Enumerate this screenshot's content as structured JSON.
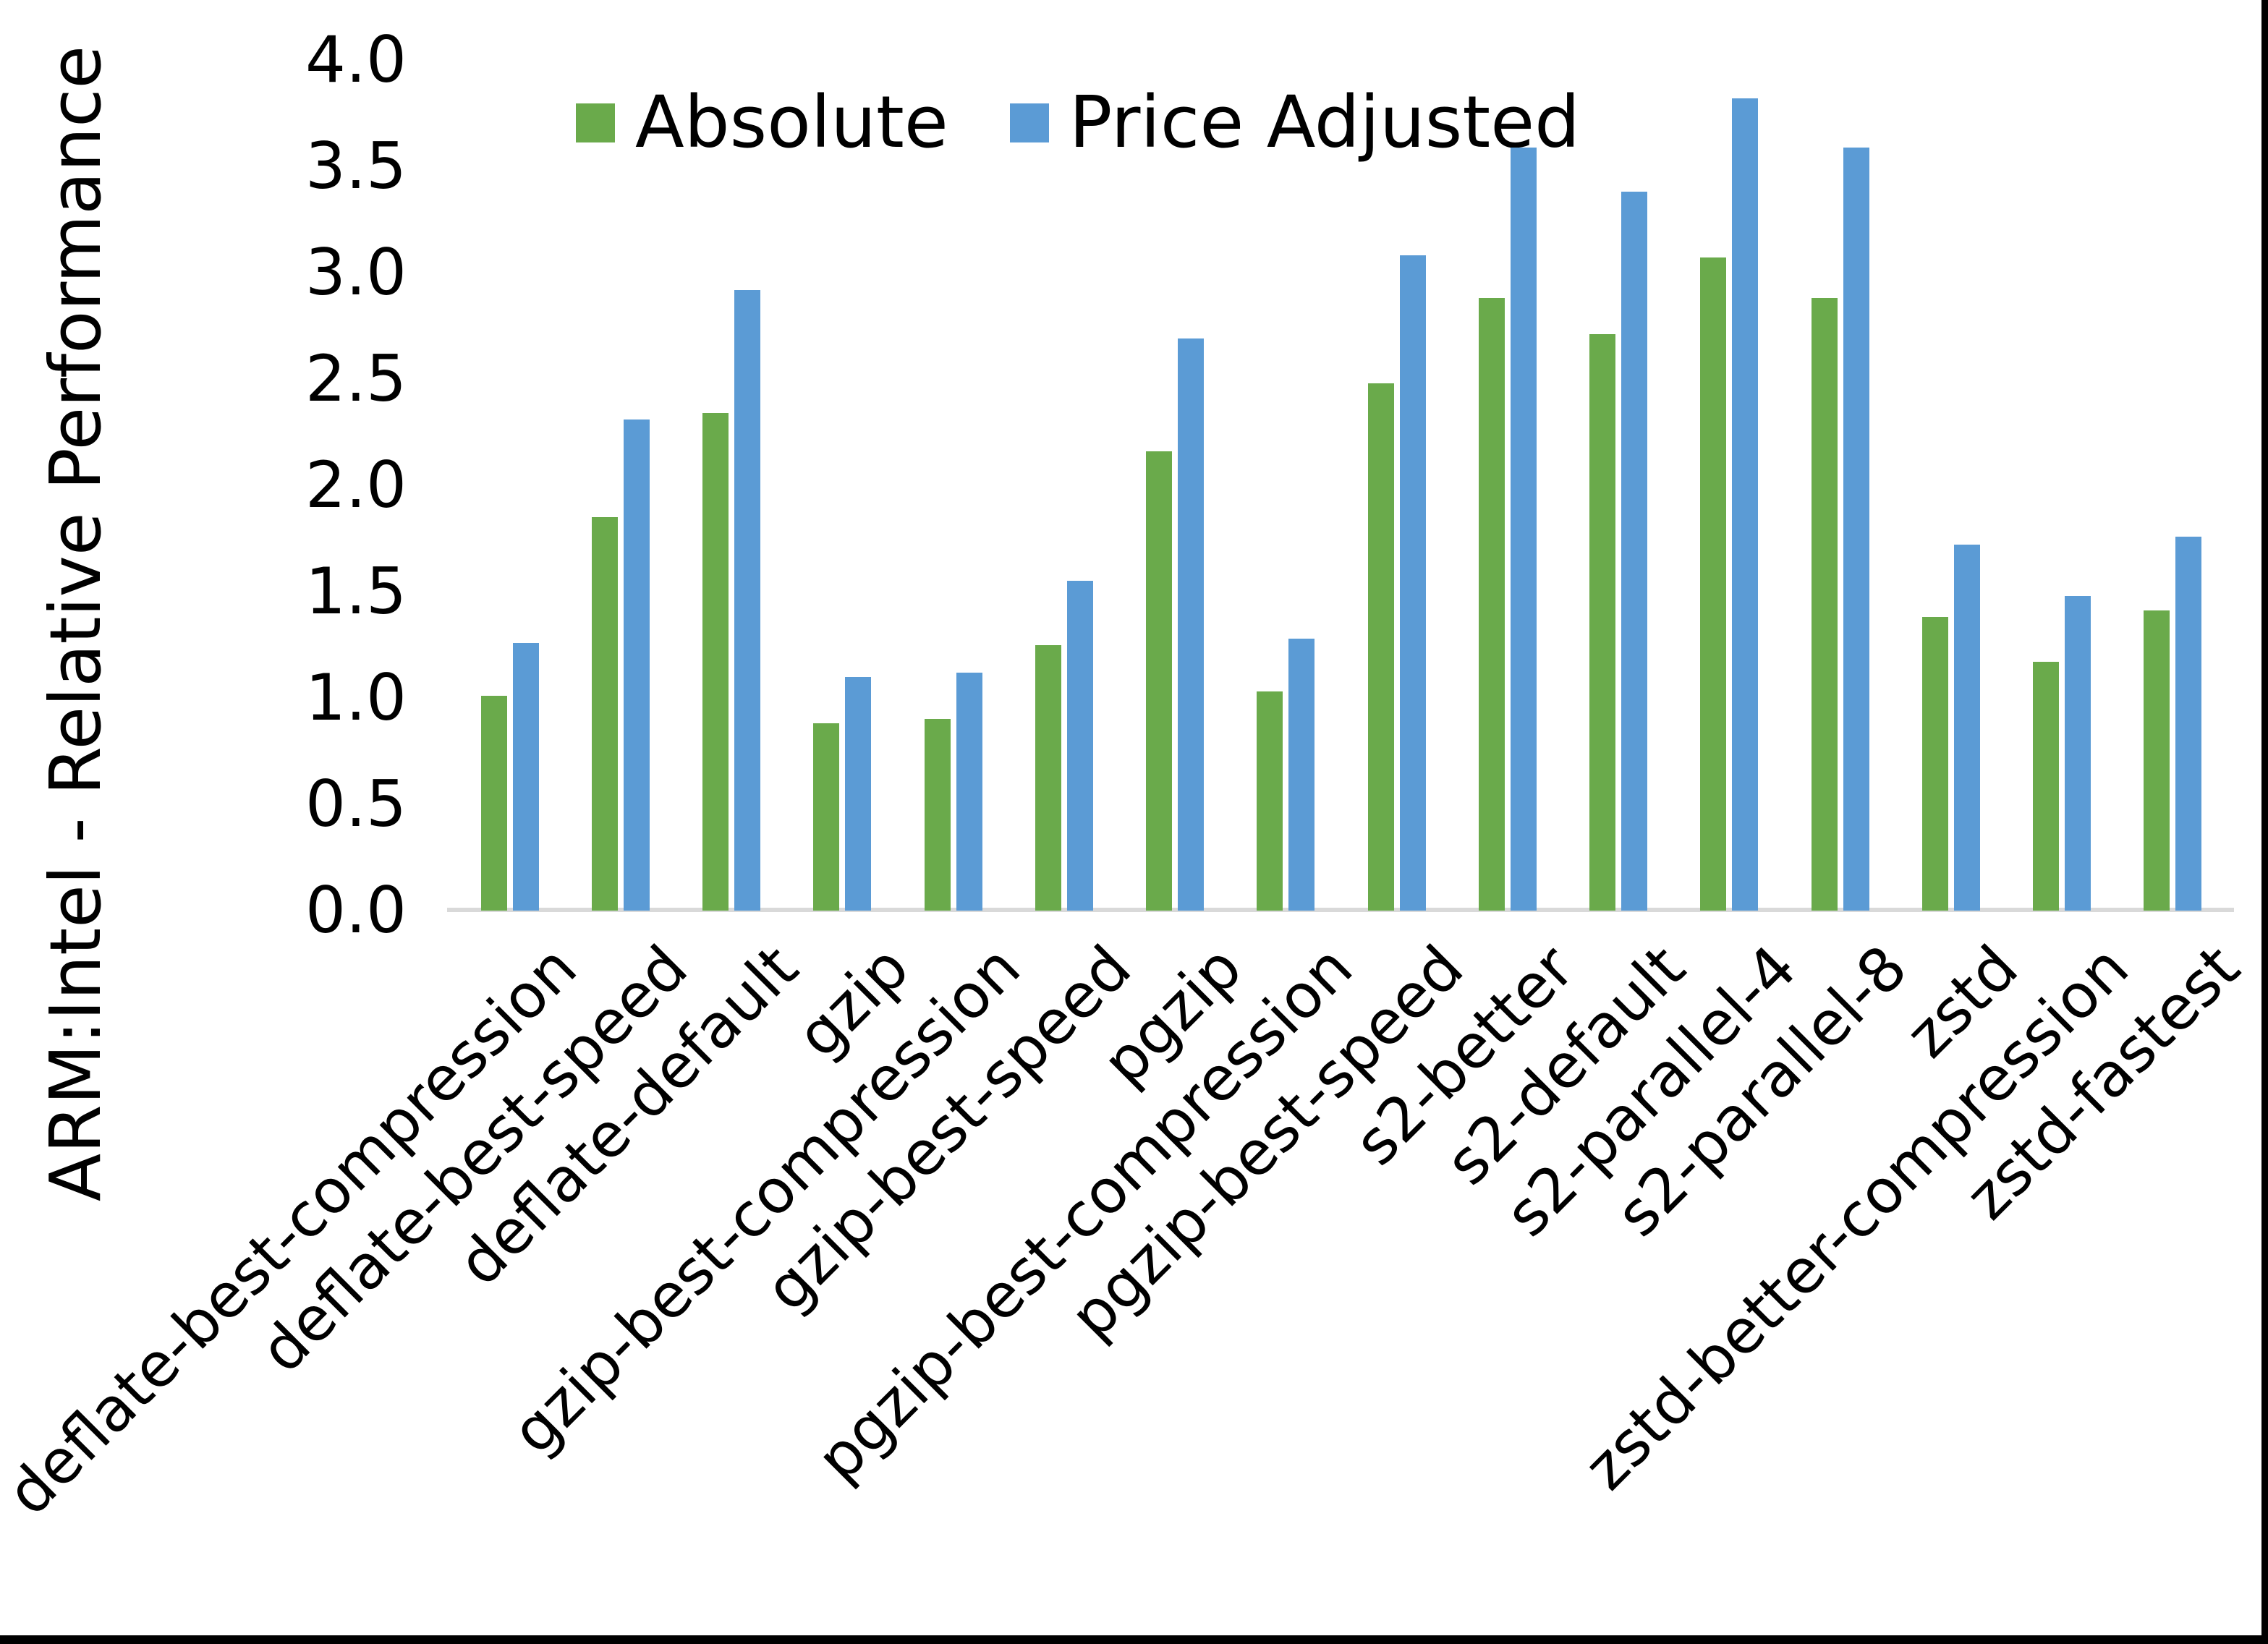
{
  "colors": {
    "absolute_green": "#6aaa4b",
    "price_adjusted_blue": "#5b9bd5",
    "axis_line_gray": "#d9d9d9",
    "text_black": "#000000",
    "frame_black": "#000000"
  },
  "chart_data": {
    "type": "bar",
    "title": "",
    "xlabel": "",
    "ylabel": "ARM:Intel - Relative Performance",
    "ylim": [
      0.0,
      4.0
    ],
    "ytick_step": 0.5,
    "ytick_labels": [
      "0.0",
      "0.5",
      "1.0",
      "1.5",
      "2.0",
      "2.5",
      "3.0",
      "3.5",
      "4.0"
    ],
    "grid": false,
    "legend_position": "top-center",
    "categories": [
      "deflate-best-compression",
      "deflate-best-speed",
      "deflate-default",
      "gzip",
      "gzip-best-compression",
      "gzip-best-speed",
      "pgzip",
      "pgzip-best-compression",
      "pgzip-best-speed",
      "s2-better",
      "s2-default",
      "s2-parallel-4",
      "s2-parallel-8",
      "zstd",
      "zstd-better-compression",
      "zstd-fastest"
    ],
    "series": [
      {
        "name": "Absolute",
        "color": "#6aaa4b",
        "values": [
          1.01,
          1.85,
          2.34,
          0.88,
          0.9,
          1.25,
          2.16,
          1.03,
          2.48,
          2.88,
          2.71,
          3.07,
          2.88,
          1.38,
          1.17,
          1.41
        ]
      },
      {
        "name": "Price Adjusted",
        "color": "#5b9bd5",
        "values": [
          1.26,
          2.31,
          2.92,
          1.1,
          1.12,
          1.55,
          2.69,
          1.28,
          3.08,
          3.59,
          3.38,
          3.82,
          3.59,
          1.72,
          1.48,
          1.76
        ]
      }
    ]
  }
}
